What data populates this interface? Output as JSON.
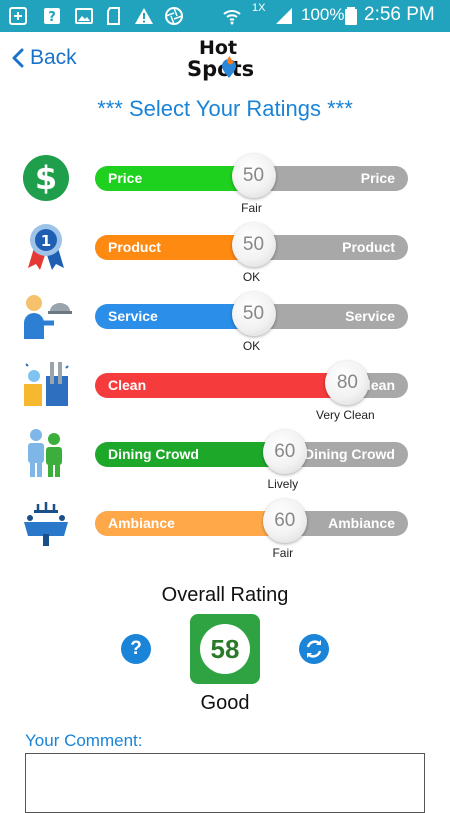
{
  "status_bar": {
    "signal_label": "1X",
    "battery": "100%",
    "time": "2:56 PM",
    "accent": "#21a3bd"
  },
  "header": {
    "back_label": "Back",
    "logo_line1": "Hot",
    "logo_line2": "Spots"
  },
  "title": "*** Select Your Ratings ***",
  "ratings": [
    {
      "key": "price",
      "icon": "dollar-icon",
      "label": "Price",
      "value": "50",
      "word": "Fair",
      "level": 0.5,
      "color": "#1fd11f"
    },
    {
      "key": "product",
      "icon": "award-ribbon-icon",
      "label": "Product",
      "value": "50",
      "word": "OK",
      "level": 0.5,
      "color": "#ff8a12"
    },
    {
      "key": "service",
      "icon": "waiter-icon",
      "label": "Service",
      "value": "50",
      "word": "OK",
      "level": 0.5,
      "color": "#2b8ee8"
    },
    {
      "key": "clean",
      "icon": "cleaning-supplies-icon",
      "label": "Clean",
      "value": "80",
      "word": "Very Clean",
      "level": 0.8,
      "color": "#f53b3b"
    },
    {
      "key": "dining_crowd",
      "icon": "people-icon",
      "label": "Dining Crowd",
      "value": "60",
      "word": "Lively",
      "level": 0.6,
      "color": "#1ea82a"
    },
    {
      "key": "ambiance",
      "icon": "dining-table-icon",
      "label": "Ambiance",
      "value": "60",
      "word": "Fair",
      "level": 0.6,
      "color": "#ffa84a"
    }
  ],
  "overall": {
    "label": "Overall Rating",
    "score": "58",
    "word": "Good",
    "help_glyph": "?"
  },
  "comment": {
    "label": "Your Comment:",
    "value": ""
  }
}
